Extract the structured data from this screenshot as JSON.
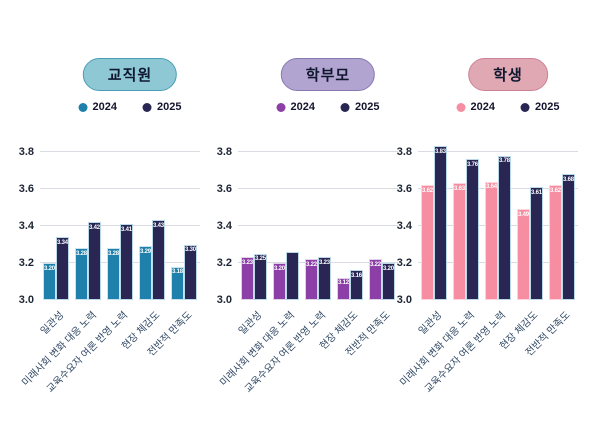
{
  "chart_data": [
    {
      "type": "bar",
      "slug": "faculty",
      "title": "교직원",
      "categories": [
        "일관성",
        "미래사회 변화 대응 노력",
        "교육수요자 여론 반영 노력",
        "현장 체감도",
        "전반적 만족도"
      ],
      "series": [
        {
          "name": "2024",
          "color": "#1f81ab",
          "edge": "#c9e2ec",
          "values": [
            3.2,
            3.28,
            3.28,
            3.29,
            3.18
          ],
          "labels": [
            "3.20",
            "3.28",
            "3.28",
            "3.29",
            "3.18"
          ]
        },
        {
          "name": "2025",
          "color": "#292654",
          "edge": "#b9d8e8",
          "values": [
            3.34,
            3.42,
            3.41,
            3.43,
            3.3
          ],
          "labels": [
            "3.34",
            "3.42",
            "3.41",
            "3.43",
            "3.30"
          ]
        }
      ],
      "ylim": [
        3.0,
        3.9
      ],
      "yticks": [
        "3.0",
        "3.2",
        "3.4",
        "3.6",
        "3.8"
      ],
      "grid": true,
      "legend_position": "top",
      "pill": {
        "bg": "#8fc8d5",
        "border": "#4a9db6",
        "text_color": "#101830"
      }
    },
    {
      "type": "bar",
      "slug": "parents",
      "title": "학부모",
      "categories": [
        "일관성",
        "미래사회 변화 대응 노력",
        "교육수요자 여론 반영 노력",
        "현장 체감도",
        "전반적 만족도"
      ],
      "series": [
        {
          "name": "2024",
          "color": "#8d3fa8",
          "edge": "#e0d0ea",
          "values": [
            3.23,
            3.2,
            3.22,
            3.12,
            3.22
          ],
          "labels": [
            "3.23",
            "3.20",
            "3.22",
            "3.12",
            "3.22"
          ]
        },
        {
          "name": "2025",
          "color": "#292654",
          "edge": "#b9d8e8",
          "values": [
            3.25,
            3.26,
            3.23,
            3.16,
            3.2
          ],
          "labels": [
            "3.25",
            "",
            "3.23",
            "3.16",
            "3.20"
          ]
        }
      ],
      "ylim": [
        3.0,
        3.9
      ],
      "yticks": [
        "3.0",
        "3.2",
        "3.4",
        "3.6",
        "3.8"
      ],
      "grid": true,
      "legend_position": "top",
      "pill": {
        "bg": "#b2a4d0",
        "border": "#8678b3",
        "text_color": "#101830"
      }
    },
    {
      "type": "bar",
      "slug": "students",
      "title": "학생",
      "categories": [
        "일관성",
        "미래사회 변화 대응 노력",
        "교육수요자 여론 반영 노력",
        "현장 체감도",
        "전반적 만족도"
      ],
      "series": [
        {
          "name": "2024",
          "color": "#f78da1",
          "edge": "#fcd6dc",
          "values": [
            3.62,
            3.63,
            3.64,
            3.49,
            3.62
          ],
          "labels": [
            "3.62",
            "3.63",
            "3.64",
            "3.49",
            "3.62"
          ]
        },
        {
          "name": "2025",
          "color": "#292654",
          "edge": "#b9d8e8",
          "values": [
            3.83,
            3.76,
            3.78,
            3.61,
            3.68
          ],
          "labels": [
            "3.83",
            "3.76",
            "3.78",
            "3.61",
            "3.68"
          ]
        }
      ],
      "ylim": [
        3.0,
        3.9
      ],
      "yticks": [
        "3.0",
        "3.2",
        "3.4",
        "3.6",
        "3.8"
      ],
      "grid": true,
      "legend_position": "top",
      "pill": {
        "bg": "#e0a8b2",
        "border": "#cb8297",
        "text_color": "#101830"
      }
    }
  ]
}
